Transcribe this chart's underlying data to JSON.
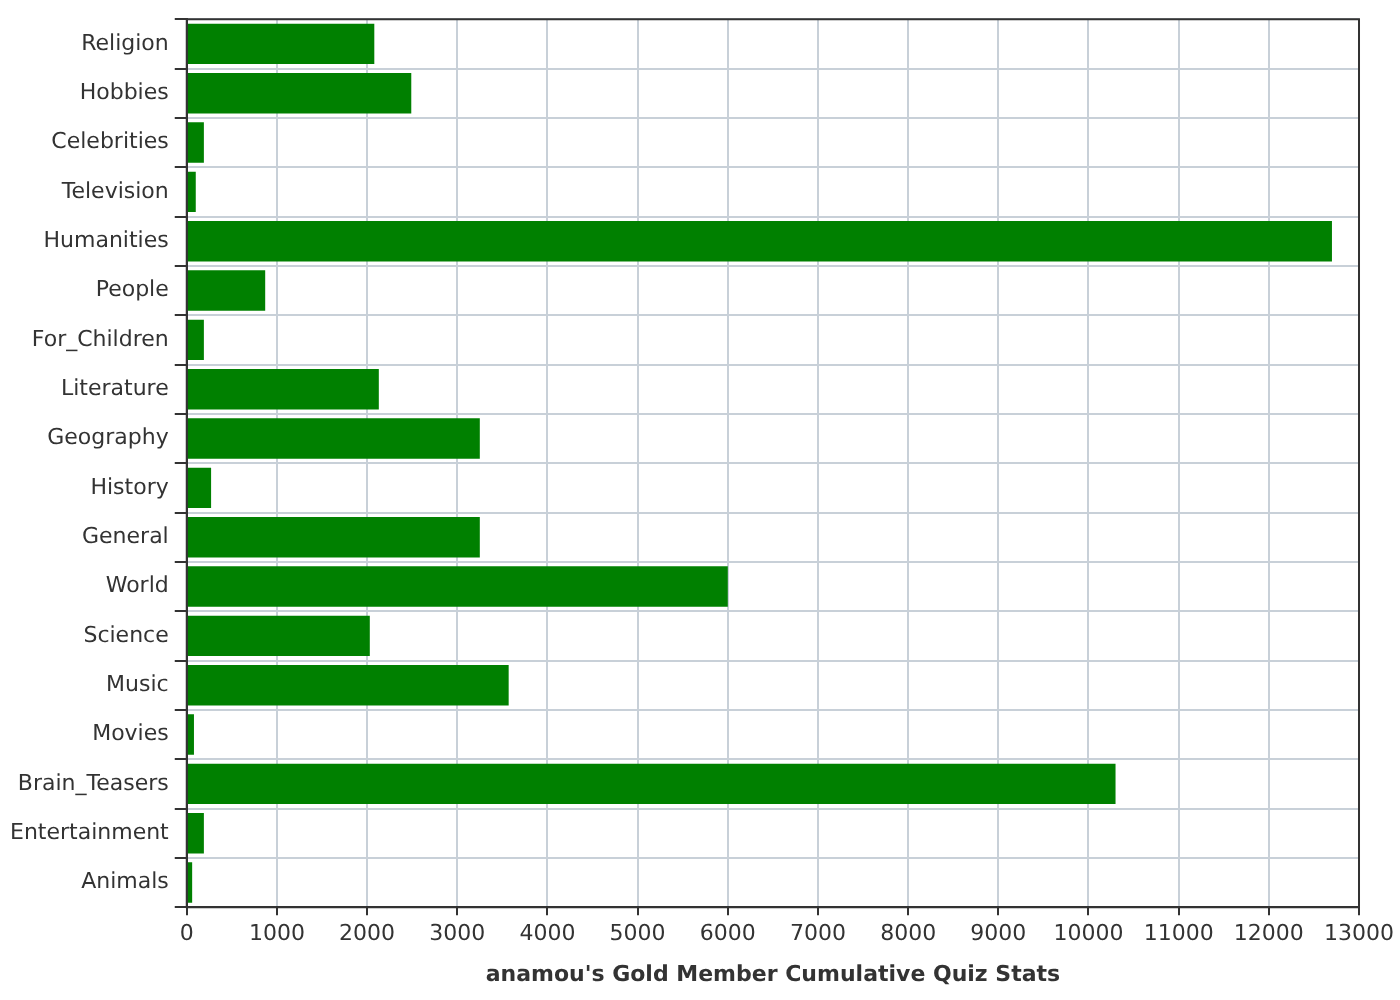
{
  "chart_data": {
    "type": "bar",
    "orientation": "horizontal",
    "xlabel": "anamou's Gold Member Cumulative Quiz Stats",
    "categories": [
      "Religion",
      "Hobbies",
      "Celebrities",
      "Television",
      "Humanities",
      "People",
      "For_Children",
      "Literature",
      "Geography",
      "History",
      "General",
      "World",
      "Science",
      "Music",
      "Movies",
      "Brain_Teasers",
      "Entertainment",
      "Animals"
    ],
    "values": [
      2080,
      2490,
      190,
      100,
      12700,
      870,
      190,
      2130,
      3250,
      270,
      3250,
      6000,
      2030,
      3570,
      80,
      10300,
      190,
      60
    ],
    "color": "#008000",
    "xlim": [
      0,
      13000
    ],
    "xticks": [
      0,
      1000,
      2000,
      3000,
      4000,
      5000,
      6000,
      7000,
      8000,
      9000,
      10000,
      11000,
      12000,
      13000
    ],
    "grid": true
  }
}
